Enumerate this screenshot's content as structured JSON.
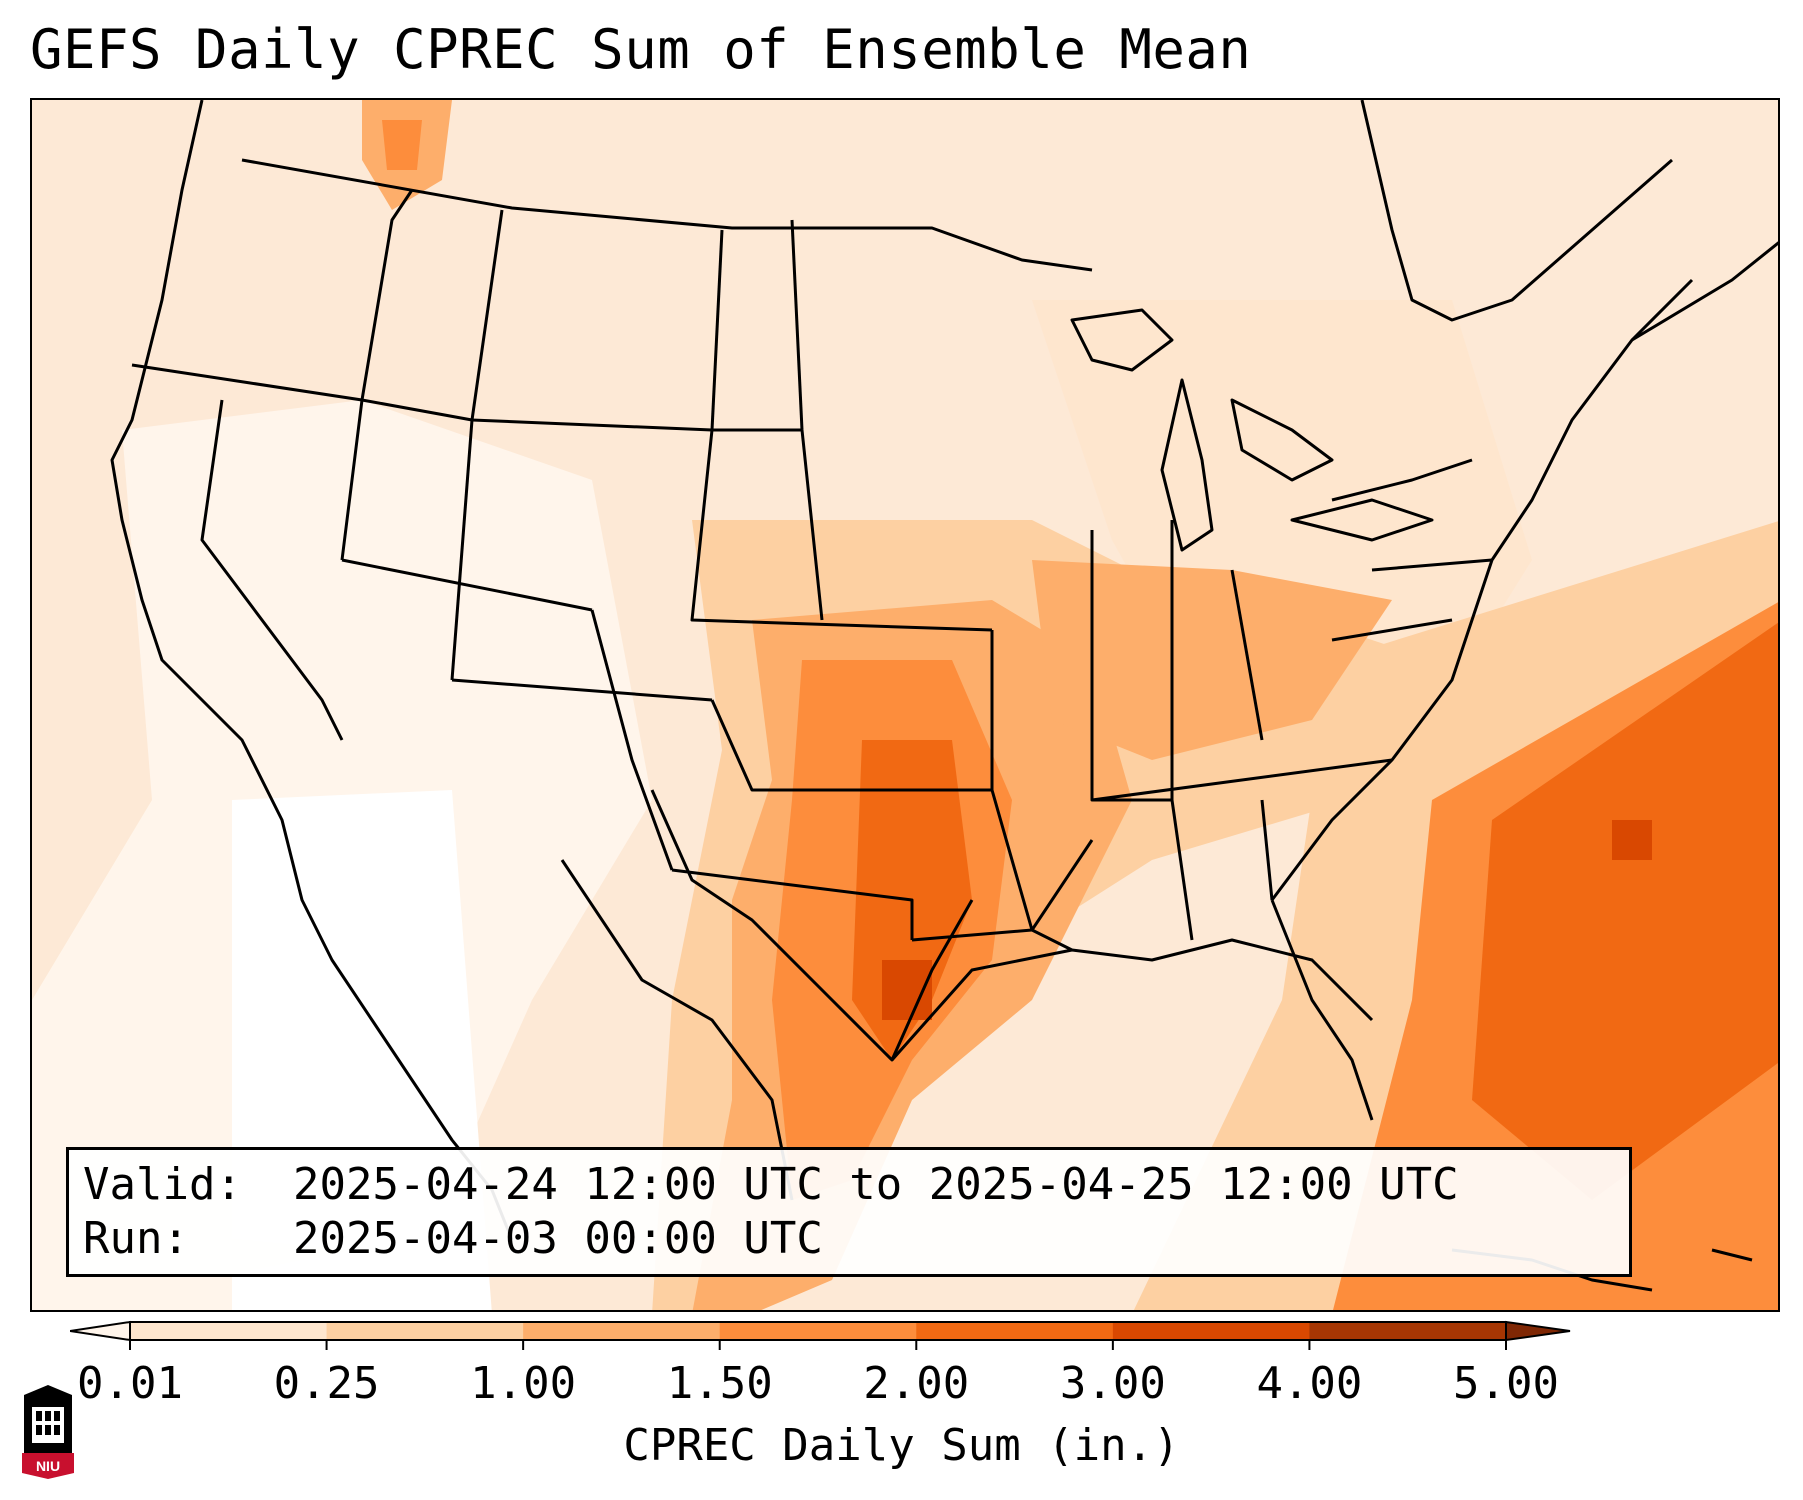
{
  "title": "GEFS Daily CPREC Sum of Ensemble Mean",
  "info": {
    "valid_label": "Valid:",
    "valid_value": "2025-04-24 12:00 UTC to 2025-04-25 12:00 UTC",
    "run_label": "Run:",
    "run_value": "2025-04-03 00:00 UTC"
  },
  "colorbar": {
    "title": "CPREC Daily Sum (in.)",
    "ticks": [
      "0.01",
      "0.25",
      "1.00",
      "1.50",
      "2.00",
      "3.00",
      "4.00",
      "5.00"
    ],
    "colors": [
      "#fff5eb",
      "#fee6ce",
      "#fdd0a2",
      "#fdae6b",
      "#fd8d3c",
      "#f16913",
      "#d94801",
      "#a63603",
      "#7f2704"
    ]
  },
  "logo": {
    "text": "NIU",
    "color": "#c8102e"
  }
}
